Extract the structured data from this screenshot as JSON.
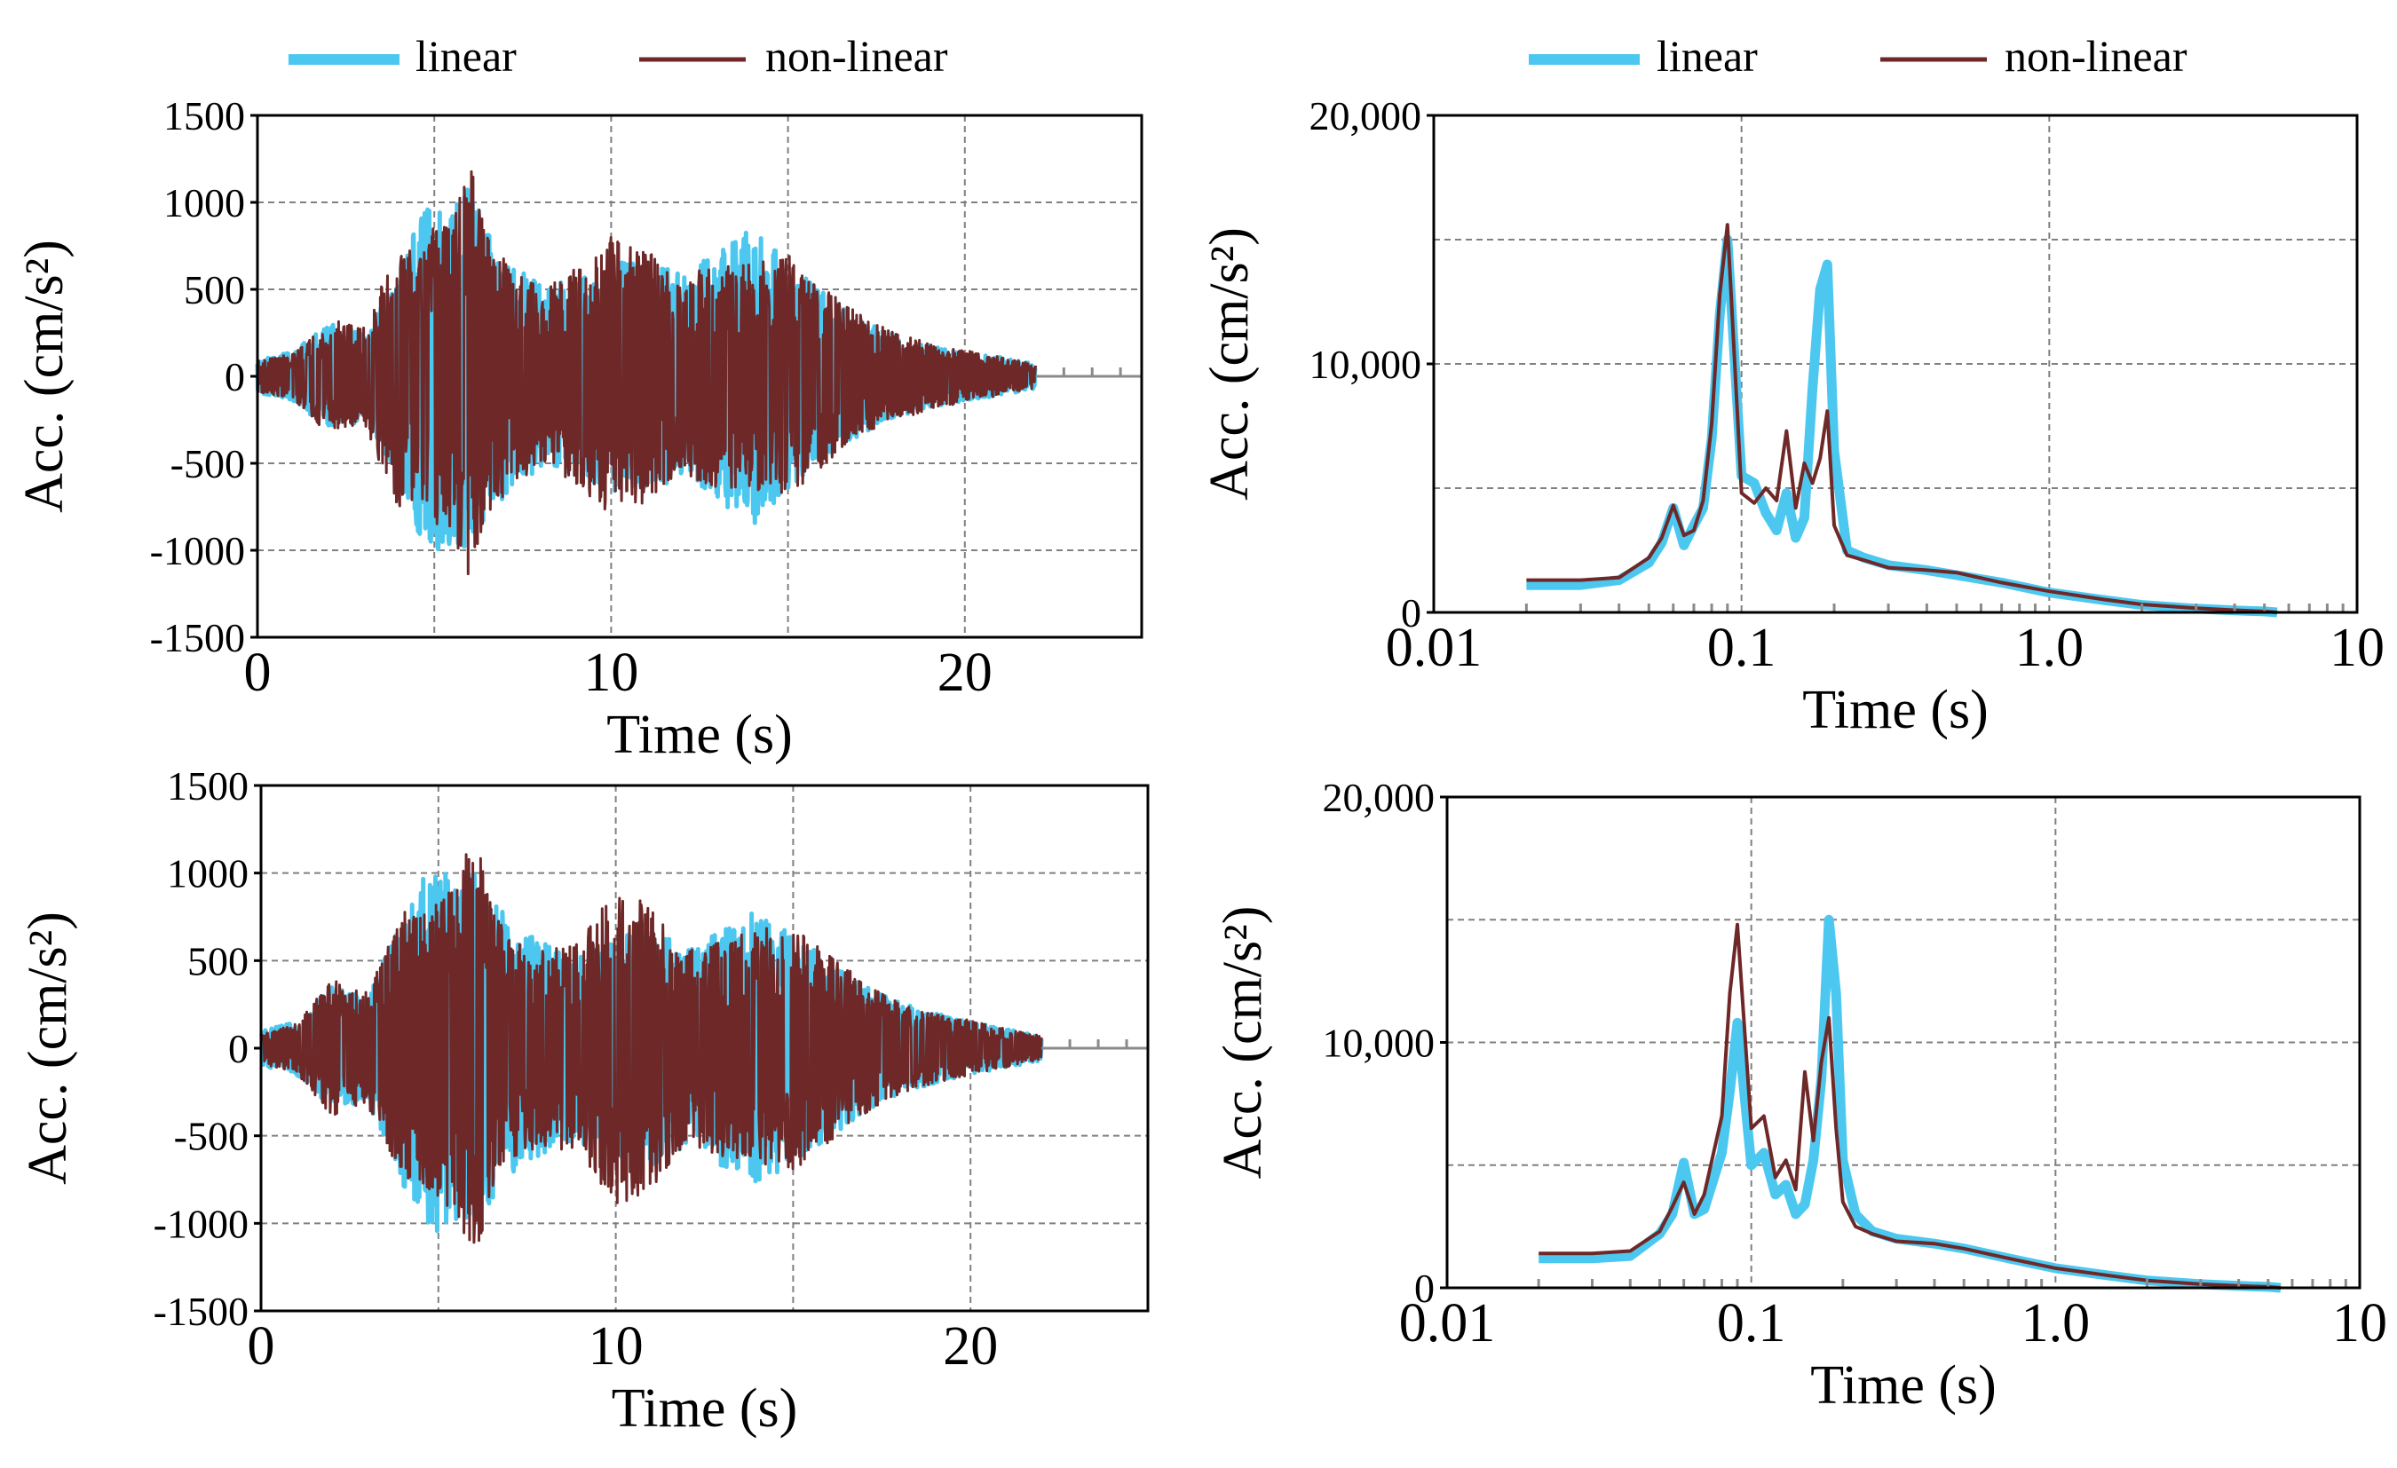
{
  "chart_data": [
    {
      "type": "line",
      "panel": "top-left",
      "xlabel": "Time (s)",
      "ylabel": "Acc. (cm/s²)",
      "xlim": [
        0,
        25
      ],
      "ylim": [
        -1500,
        1500
      ],
      "xticks": [
        0,
        10,
        20
      ],
      "xtick_labels": [
        "0",
        "10",
        "20"
      ],
      "yticks": [
        1500,
        1000,
        500,
        0,
        -500,
        -1000,
        -1500
      ],
      "ytick_labels": [
        "1500",
        "1000",
        "500",
        "0",
        "-500",
        "-1000",
        "-1500"
      ],
      "legend": [
        "linear",
        "non-linear"
      ],
      "series": [
        {
          "name": "linear",
          "color": "#4cc8f0",
          "x": [
            0,
            1,
            2,
            3,
            4,
            4.5,
            5,
            5.5,
            6,
            6.5,
            7,
            8,
            9,
            10,
            11,
            12,
            13,
            14,
            15,
            16,
            17,
            18,
            19,
            20,
            21,
            22
          ],
          "envelope": [
            100,
            140,
            300,
            260,
            560,
            880,
            1030,
            960,
            1130,
            820,
            700,
            520,
            560,
            660,
            640,
            600,
            720,
            860,
            650,
            480,
            340,
            240,
            180,
            140,
            110,
            70
          ]
        },
        {
          "name": "non-linear",
          "color": "#6e2828",
          "x": [
            0,
            1,
            2,
            3,
            4,
            4.5,
            5,
            5.5,
            6,
            6.5,
            7,
            8,
            9,
            10,
            11,
            12,
            13,
            14,
            15,
            16,
            17,
            18,
            19,
            20,
            21,
            22
          ],
          "envelope": [
            90,
            130,
            330,
            280,
            760,
            700,
            860,
            900,
            1240,
            800,
            680,
            500,
            620,
            800,
            720,
            580,
            640,
            650,
            700,
            520,
            360,
            260,
            190,
            150,
            110,
            70
          ]
        }
      ]
    },
    {
      "type": "line",
      "panel": "top-right",
      "xscale": "log",
      "xlabel": "Time (s)",
      "ylabel": "Acc. (cm/s²)",
      "xlim": [
        0.01,
        10
      ],
      "ylim": [
        0,
        20000
      ],
      "xticks": [
        0.01,
        0.1,
        1,
        10
      ],
      "xtick_labels": [
        "0.01",
        "0.1",
        "1.0",
        "10"
      ],
      "yticks": [
        20000,
        10000,
        0
      ],
      "ytick_labels": [
        "20,000",
        "10,000",
        "0"
      ],
      "legend": [
        "linear",
        "non-linear"
      ],
      "series": [
        {
          "name": "linear",
          "color": "#4cc8f0",
          "x": [
            0.02,
            0.03,
            0.04,
            0.05,
            0.055,
            0.06,
            0.065,
            0.07,
            0.075,
            0.08,
            0.085,
            0.09,
            0.1,
            0.11,
            0.12,
            0.13,
            0.14,
            0.15,
            0.16,
            0.17,
            0.18,
            0.19,
            0.2,
            0.22,
            0.25,
            0.3,
            0.4,
            0.5,
            0.7,
            1.0,
            1.5,
            2.0,
            3.0,
            4.0,
            5.0,
            5.5
          ],
          "y": [
            1100,
            1100,
            1300,
            2000,
            2800,
            4200,
            2700,
            3500,
            4200,
            7000,
            12000,
            15000,
            5500,
            5200,
            4000,
            3300,
            4800,
            3000,
            3800,
            9000,
            13000,
            14000,
            6500,
            2500,
            2200,
            1900,
            1700,
            1500,
            1200,
            800,
            500,
            300,
            150,
            80,
            40,
            0
          ]
        },
        {
          "name": "non-linear",
          "color": "#6e2828",
          "x": [
            0.02,
            0.03,
            0.04,
            0.05,
            0.055,
            0.06,
            0.065,
            0.07,
            0.075,
            0.08,
            0.085,
            0.09,
            0.1,
            0.11,
            0.12,
            0.13,
            0.14,
            0.15,
            0.16,
            0.17,
            0.18,
            0.19,
            0.2,
            0.22,
            0.25,
            0.3,
            0.4,
            0.5,
            0.7,
            1.0,
            1.5,
            2.0,
            3.0,
            4.0,
            5.0,
            5.5
          ],
          "y": [
            1300,
            1300,
            1400,
            2200,
            3000,
            4300,
            3100,
            3300,
            4500,
            7600,
            12800,
            15600,
            4800,
            4400,
            5000,
            4500,
            7300,
            4200,
            6000,
            5200,
            6200,
            8100,
            3500,
            2300,
            2100,
            1800,
            1700,
            1600,
            1200,
            850,
            520,
            320,
            170,
            90,
            40,
            0
          ]
        }
      ]
    },
    {
      "type": "line",
      "panel": "bottom-left",
      "xlabel": "Time (s)",
      "ylabel": "Acc. (cm/s²)",
      "xlim": [
        0,
        25
      ],
      "ylim": [
        -1500,
        1500
      ],
      "xticks": [
        0,
        10,
        20
      ],
      "xtick_labels": [
        "0",
        "10",
        "20"
      ],
      "yticks": [
        1500,
        1000,
        500,
        0,
        -500,
        -1000,
        -1500
      ],
      "ytick_labels": [
        "1500",
        "1000",
        "500",
        "0",
        "-500",
        "-1000",
        "-1500"
      ],
      "series": [
        {
          "name": "linear",
          "color": "#4cc8f0",
          "x": [
            0,
            1,
            2,
            3,
            4,
            4.5,
            5,
            5.5,
            6,
            6.5,
            7,
            8,
            9,
            10,
            11,
            12,
            13,
            14,
            15,
            16,
            17,
            18,
            19,
            20,
            21,
            22
          ],
          "envelope": [
            100,
            150,
            350,
            300,
            780,
            950,
            1060,
            980,
            1000,
            900,
            720,
            600,
            560,
            620,
            700,
            560,
            680,
            800,
            640,
            520,
            360,
            260,
            200,
            150,
            110,
            70
          ]
        },
        {
          "name": "non-linear",
          "color": "#6e2828",
          "x": [
            0,
            1,
            2,
            3,
            4,
            4.5,
            5,
            5.5,
            6,
            6.5,
            7,
            8,
            9,
            10,
            11,
            12,
            13,
            14,
            15,
            16,
            17,
            18,
            19,
            20,
            21,
            22
          ],
          "envelope": [
            90,
            140,
            390,
            320,
            800,
            760,
            880,
            920,
            1250,
            820,
            640,
            560,
            640,
            900,
            820,
            560,
            620,
            680,
            700,
            540,
            380,
            260,
            200,
            160,
            110,
            70
          ]
        }
      ]
    },
    {
      "type": "line",
      "panel": "bottom-right",
      "xscale": "log",
      "xlabel": "Time (s)",
      "ylabel": "Acc. (cm/s²)",
      "xlim": [
        0.01,
        10
      ],
      "ylim": [
        0,
        20000
      ],
      "xticks": [
        0.01,
        0.1,
        1,
        10
      ],
      "xtick_labels": [
        "0.01",
        "0.1",
        "1.0",
        "10"
      ],
      "yticks": [
        20000,
        10000,
        0
      ],
      "ytick_labels": [
        "20,000",
        "10,000",
        "0"
      ],
      "series": [
        {
          "name": "linear",
          "color": "#4cc8f0",
          "x": [
            0.02,
            0.03,
            0.04,
            0.05,
            0.055,
            0.06,
            0.065,
            0.07,
            0.08,
            0.085,
            0.09,
            0.1,
            0.11,
            0.12,
            0.13,
            0.14,
            0.15,
            0.16,
            0.17,
            0.18,
            0.19,
            0.2,
            0.22,
            0.25,
            0.3,
            0.4,
            0.5,
            0.7,
            1.0,
            1.5,
            2.0,
            3.0,
            4.0,
            5.0,
            5.5
          ],
          "y": [
            1200,
            1200,
            1300,
            2200,
            3000,
            5100,
            3000,
            3200,
            5500,
            8000,
            10800,
            5000,
            5500,
            3800,
            4200,
            3000,
            3400,
            5200,
            8500,
            15000,
            12000,
            5200,
            3000,
            2300,
            2000,
            1800,
            1600,
            1200,
            800,
            500,
            300,
            150,
            80,
            40,
            0
          ]
        },
        {
          "name": "non-linear",
          "color": "#6e2828",
          "x": [
            0.02,
            0.03,
            0.04,
            0.05,
            0.055,
            0.06,
            0.065,
            0.07,
            0.08,
            0.085,
            0.09,
            0.1,
            0.11,
            0.12,
            0.13,
            0.14,
            0.15,
            0.16,
            0.17,
            0.18,
            0.19,
            0.2,
            0.22,
            0.25,
            0.3,
            0.4,
            0.5,
            0.7,
            1.0,
            1.5,
            2.0,
            3.0,
            4.0,
            5.0,
            5.5
          ],
          "y": [
            1400,
            1400,
            1500,
            2300,
            3300,
            4300,
            3000,
            3800,
            7000,
            12000,
            14800,
            6500,
            7000,
            4500,
            5200,
            4000,
            8800,
            6000,
            9200,
            11000,
            6500,
            3500,
            2500,
            2200,
            1900,
            1800,
            1600,
            1200,
            800,
            500,
            300,
            150,
            80,
            40,
            0
          ]
        }
      ]
    }
  ]
}
